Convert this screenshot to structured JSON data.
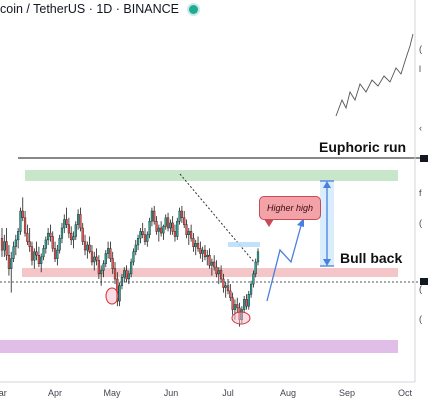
{
  "header": {
    "symbol": "coin / TetherUS · 1D · BINANCE"
  },
  "annotations": {
    "euphoric_run": "Euphoric run",
    "bull_back": "Bull back",
    "higher_high": "Higher high"
  },
  "colors": {
    "up": "#26a69a",
    "down": "#ef5350",
    "resistance_zone": "#c8e6c9",
    "support_zone": "#f5c6c8",
    "lower_zone": "#e1bee7",
    "projection": "#4a7fe0",
    "live_dot": "#22ab94"
  },
  "chart_data": {
    "type": "candlestick",
    "x_tick_labels": [
      "Mar",
      "Apr",
      "May",
      "Jun",
      "Jul",
      "Aug",
      "Sep",
      "Oct"
    ],
    "price_axis_labels_visible": false,
    "series": [
      {
        "values": [
          [
            0.54,
            0.6,
            0.43,
            0.47
          ],
          [
            0.47,
            0.56,
            0.43,
            0.52
          ],
          [
            0.52,
            0.6,
            0.41,
            0.44
          ],
          [
            0.44,
            0.5,
            0.32,
            0.36
          ],
          [
            0.36,
            0.46,
            0.22,
            0.42
          ],
          [
            0.42,
            0.52,
            0.4,
            0.49
          ],
          [
            0.49,
            0.56,
            0.44,
            0.53
          ],
          [
            0.53,
            0.6,
            0.48,
            0.58
          ],
          [
            0.58,
            0.72,
            0.56,
            0.7
          ],
          [
            0.7,
            0.78,
            0.64,
            0.66
          ],
          [
            0.66,
            0.7,
            0.55,
            0.57
          ],
          [
            0.57,
            0.62,
            0.5,
            0.52
          ],
          [
            0.52,
            0.6,
            0.46,
            0.49
          ],
          [
            0.49,
            0.52,
            0.38,
            0.41
          ],
          [
            0.41,
            0.48,
            0.36,
            0.46
          ],
          [
            0.46,
            0.52,
            0.41,
            0.44
          ],
          [
            0.44,
            0.49,
            0.37,
            0.39
          ],
          [
            0.39,
            0.45,
            0.34,
            0.43
          ],
          [
            0.43,
            0.5,
            0.41,
            0.48
          ],
          [
            0.48,
            0.55,
            0.45,
            0.53
          ],
          [
            0.53,
            0.6,
            0.5,
            0.57
          ],
          [
            0.57,
            0.62,
            0.52,
            0.55
          ],
          [
            0.55,
            0.58,
            0.46,
            0.48
          ],
          [
            0.48,
            0.52,
            0.4,
            0.42
          ],
          [
            0.42,
            0.5,
            0.38,
            0.47
          ],
          [
            0.47,
            0.56,
            0.45,
            0.54
          ],
          [
            0.54,
            0.63,
            0.51,
            0.6
          ],
          [
            0.6,
            0.68,
            0.57,
            0.65
          ],
          [
            0.65,
            0.72,
            0.6,
            0.62
          ],
          [
            0.62,
            0.66,
            0.54,
            0.57
          ],
          [
            0.57,
            0.61,
            0.5,
            0.53
          ],
          [
            0.53,
            0.58,
            0.48,
            0.55
          ],
          [
            0.55,
            0.64,
            0.53,
            0.62
          ],
          [
            0.62,
            0.71,
            0.59,
            0.68
          ],
          [
            0.68,
            0.72,
            0.58,
            0.6
          ],
          [
            0.6,
            0.63,
            0.5,
            0.52
          ],
          [
            0.52,
            0.56,
            0.44,
            0.47
          ],
          [
            0.47,
            0.52,
            0.42,
            0.5
          ],
          [
            0.5,
            0.55,
            0.45,
            0.46
          ],
          [
            0.46,
            0.5,
            0.38,
            0.4
          ],
          [
            0.4,
            0.46,
            0.35,
            0.43
          ],
          [
            0.43,
            0.48,
            0.38,
            0.41
          ],
          [
            0.41,
            0.44,
            0.3,
            0.33
          ],
          [
            0.33,
            0.38,
            0.26,
            0.35
          ],
          [
            0.35,
            0.41,
            0.31,
            0.39
          ],
          [
            0.39,
            0.47,
            0.37,
            0.45
          ],
          [
            0.45,
            0.52,
            0.42,
            0.48
          ],
          [
            0.48,
            0.52,
            0.4,
            0.42
          ],
          [
            0.42,
            0.46,
            0.33,
            0.36
          ],
          [
            0.36,
            0.4,
            0.27,
            0.3
          ],
          [
            0.3,
            0.34,
            0.14,
            0.17
          ],
          [
            0.17,
            0.28,
            0.14,
            0.26
          ],
          [
            0.26,
            0.33,
            0.24,
            0.31
          ],
          [
            0.31,
            0.37,
            0.28,
            0.35
          ],
          [
            0.35,
            0.38,
            0.28,
            0.3
          ],
          [
            0.3,
            0.35,
            0.27,
            0.33
          ],
          [
            0.33,
            0.42,
            0.31,
            0.4
          ],
          [
            0.4,
            0.48,
            0.38,
            0.46
          ],
          [
            0.46,
            0.53,
            0.44,
            0.5
          ],
          [
            0.5,
            0.56,
            0.47,
            0.54
          ],
          [
            0.54,
            0.6,
            0.51,
            0.58
          ],
          [
            0.58,
            0.63,
            0.54,
            0.56
          ],
          [
            0.56,
            0.6,
            0.5,
            0.52
          ],
          [
            0.52,
            0.58,
            0.49,
            0.56
          ],
          [
            0.56,
            0.66,
            0.54,
            0.64
          ],
          [
            0.64,
            0.72,
            0.61,
            0.7
          ],
          [
            0.7,
            0.73,
            0.62,
            0.64
          ],
          [
            0.64,
            0.67,
            0.56,
            0.58
          ],
          [
            0.58,
            0.62,
            0.52,
            0.6
          ],
          [
            0.6,
            0.64,
            0.55,
            0.57
          ],
          [
            0.57,
            0.62,
            0.53,
            0.61
          ],
          [
            0.61,
            0.68,
            0.59,
            0.66
          ],
          [
            0.66,
            0.69,
            0.58,
            0.6
          ],
          [
            0.6,
            0.65,
            0.56,
            0.63
          ],
          [
            0.63,
            0.67,
            0.56,
            0.58
          ],
          [
            0.58,
            0.62,
            0.52,
            0.55
          ],
          [
            0.55,
            0.66,
            0.53,
            0.64
          ],
          [
            0.64,
            0.72,
            0.62,
            0.7
          ],
          [
            0.7,
            0.73,
            0.63,
            0.66
          ],
          [
            0.66,
            0.7,
            0.6,
            0.62
          ],
          [
            0.62,
            0.65,
            0.54,
            0.56
          ],
          [
            0.56,
            0.6,
            0.5,
            0.58
          ],
          [
            0.58,
            0.62,
            0.52,
            0.54
          ],
          [
            0.54,
            0.57,
            0.46,
            0.49
          ],
          [
            0.49,
            0.53,
            0.44,
            0.51
          ],
          [
            0.51,
            0.55,
            0.46,
            0.48
          ],
          [
            0.48,
            0.52,
            0.42,
            0.45
          ],
          [
            0.45,
            0.49,
            0.4,
            0.47
          ],
          [
            0.47,
            0.5,
            0.41,
            0.43
          ],
          [
            0.43,
            0.47,
            0.38,
            0.44
          ],
          [
            0.44,
            0.48,
            0.36,
            0.38
          ],
          [
            0.38,
            0.42,
            0.32,
            0.4
          ],
          [
            0.4,
            0.44,
            0.35,
            0.37
          ],
          [
            0.37,
            0.41,
            0.31,
            0.33
          ],
          [
            0.33,
            0.37,
            0.27,
            0.35
          ],
          [
            0.35,
            0.38,
            0.28,
            0.3
          ],
          [
            0.3,
            0.33,
            0.22,
            0.25
          ],
          [
            0.25,
            0.28,
            0.19,
            0.26
          ],
          [
            0.26,
            0.3,
            0.21,
            0.23
          ],
          [
            0.23,
            0.27,
            0.17,
            0.19
          ],
          [
            0.19,
            0.22,
            0.09,
            0.12
          ],
          [
            0.12,
            0.18,
            0.06,
            0.15
          ],
          [
            0.15,
            0.19,
            0.1,
            0.13
          ],
          [
            0.13,
            0.16,
            0.02,
            0.06
          ],
          [
            0.06,
            0.14,
            0.04,
            0.12
          ],
          [
            0.12,
            0.2,
            0.1,
            0.18
          ],
          [
            0.18,
            0.21,
            0.12,
            0.14
          ],
          [
            0.14,
            0.23,
            0.12,
            0.21
          ],
          [
            0.21,
            0.29,
            0.19,
            0.27
          ],
          [
            0.27,
            0.35,
            0.25,
            0.33
          ],
          [
            0.33,
            0.42,
            0.31,
            0.4
          ],
          [
            0.4,
            0.48,
            0.38,
            0.46
          ]
        ]
      }
    ],
    "overlays": [
      {
        "name": "top-line",
        "kind": "horizontal_line"
      },
      {
        "name": "resistance-zone",
        "kind": "zone"
      },
      {
        "name": "support-zone",
        "kind": "zone"
      },
      {
        "name": "lower-zone",
        "kind": "zone"
      },
      {
        "name": "dotted-level",
        "kind": "horizontal_dotted_line"
      },
      {
        "name": "descending-trendline",
        "kind": "dotted_line"
      },
      {
        "name": "projection-path",
        "kind": "arrow"
      },
      {
        "name": "measured-move",
        "kind": "double_arrow"
      },
      {
        "name": "euphoric-curve",
        "kind": "freehand"
      }
    ]
  }
}
